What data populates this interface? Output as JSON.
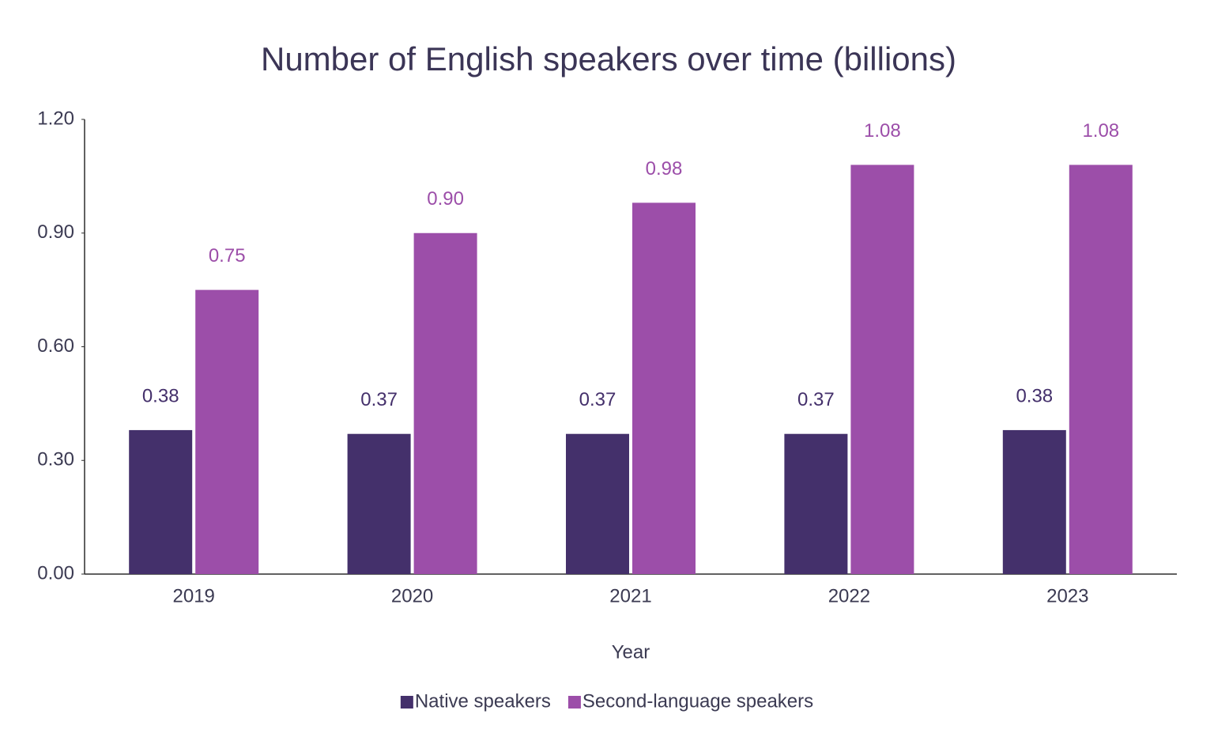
{
  "chart_data": {
    "type": "bar",
    "title": "Number of English speakers over time (billions)",
    "x_label": "Year",
    "categories": [
      "2019",
      "2020",
      "2021",
      "2022",
      "2023"
    ],
    "series": [
      {
        "name": "Native speakers",
        "color": "#44306b",
        "values": [
          0.38,
          0.37,
          0.37,
          0.37,
          0.38
        ],
        "value_labels": [
          "0.38",
          "0.37",
          "0.37",
          "0.37",
          "0.38"
        ]
      },
      {
        "name": "Second-language speakers",
        "color": "#9c4ea9",
        "values": [
          0.75,
          0.9,
          0.98,
          1.08,
          1.08
        ],
        "value_labels": [
          "0.75",
          "0.90",
          "0.98",
          "1.08",
          "1.08"
        ]
      }
    ],
    "ylim": [
      0,
      1.2
    ],
    "yticks": [
      {
        "value": 0,
        "label": "0.00"
      },
      {
        "value": 0.3,
        "label": "0.30"
      },
      {
        "value": 0.6,
        "label": "0.60"
      },
      {
        "value": 0.9,
        "label": "0.90"
      },
      {
        "value": 1.2,
        "label": "1.20"
      }
    ],
    "grid": false,
    "legend": "bottom"
  }
}
